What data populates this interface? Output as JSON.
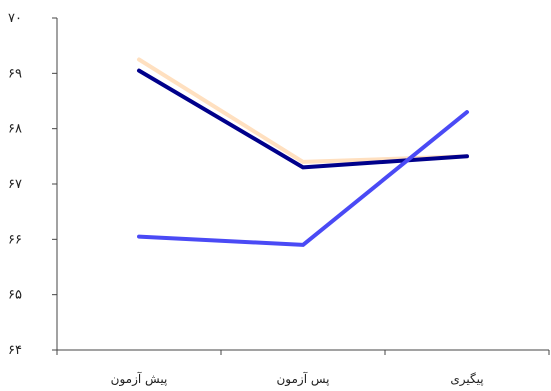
{
  "chart_data": {
    "type": "line",
    "categories": [
      "پیش آزمون",
      "پس آزمون",
      "پیگیری"
    ],
    "y_ticks": [
      "۶۴",
      "۶۵",
      "۶۶",
      "۶۷",
      "۶۸",
      "۶۹",
      "۷۰"
    ],
    "ylim": [
      64,
      70
    ],
    "grid": false,
    "series": [
      {
        "values": [
          69.25,
          67.4,
          67.5
        ],
        "color": "#FFE0C0"
      },
      {
        "values": [
          69.05,
          67.3,
          67.5
        ],
        "color": "#00008B"
      },
      {
        "values": [
          66.05,
          65.9,
          68.3
        ],
        "color": "#4A4AF5"
      }
    ]
  }
}
